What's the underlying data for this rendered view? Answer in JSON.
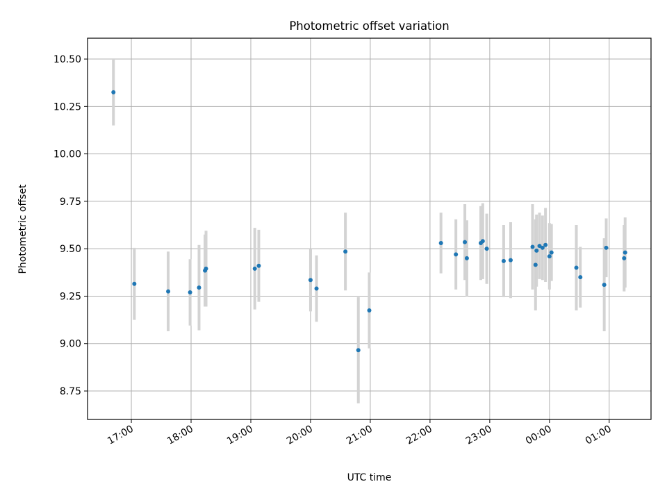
{
  "chart_data": {
    "type": "scatter",
    "title": "Photometric offset variation",
    "xlabel": "UTC time",
    "ylabel": "Photometric offset",
    "x_is_time": true,
    "xlim": [
      "16:16",
      "01:42"
    ],
    "ylim": [
      8.6,
      10.61
    ],
    "yticks": [
      8.75,
      9.0,
      9.25,
      9.5,
      9.75,
      10.0,
      10.25,
      10.5
    ],
    "xticks": [
      "17:00",
      "18:00",
      "19:00",
      "20:00",
      "21:00",
      "22:00",
      "23:00",
      "00:00",
      "01:00"
    ],
    "grid": true,
    "colors": {
      "points": "#1f77b4",
      "errorbars": "#d3d3d3",
      "grid": "#b0b0b0"
    },
    "points": [
      {
        "x": "16:42",
        "y": 10.325,
        "err": 0.175
      },
      {
        "x": "17:03",
        "y": 9.315,
        "err": 0.19
      },
      {
        "x": "17:37",
        "y": 9.275,
        "err": 0.21
      },
      {
        "x": "17:59",
        "y": 9.27,
        "err": 0.175
      },
      {
        "x": "18:08",
        "y": 9.295,
        "err": 0.225
      },
      {
        "x": "18:14",
        "y": 9.385,
        "err": 0.19
      },
      {
        "x": "18:15",
        "y": 9.395,
        "err": 0.2
      },
      {
        "x": "19:04",
        "y": 9.395,
        "err": 0.215
      },
      {
        "x": "19:08",
        "y": 9.41,
        "err": 0.19
      },
      {
        "x": "20:00",
        "y": 9.335,
        "err": 0.165
      },
      {
        "x": "20:06",
        "y": 9.29,
        "err": 0.175
      },
      {
        "x": "20:35",
        "y": 9.485,
        "err": 0.205
      },
      {
        "x": "20:48",
        "y": 8.965,
        "err": 0.28
      },
      {
        "x": "20:59",
        "y": 9.175,
        "err": 0.2
      },
      {
        "x": "22:11",
        "y": 9.53,
        "err": 0.16
      },
      {
        "x": "22:26",
        "y": 9.47,
        "err": 0.185
      },
      {
        "x": "22:35",
        "y": 9.535,
        "err": 0.2
      },
      {
        "x": "22:37",
        "y": 9.45,
        "err": 0.2
      },
      {
        "x": "22:51",
        "y": 9.53,
        "err": 0.195
      },
      {
        "x": "22:53",
        "y": 9.54,
        "err": 0.2
      },
      {
        "x": "22:57",
        "y": 9.5,
        "err": 0.185
      },
      {
        "x": "23:14",
        "y": 9.435,
        "err": 0.19
      },
      {
        "x": "23:21",
        "y": 9.44,
        "err": 0.2
      },
      {
        "x": "23:43",
        "y": 9.51,
        "err": 0.225
      },
      {
        "x": "23:46",
        "y": 9.415,
        "err": 0.24
      },
      {
        "x": "23:47",
        "y": 9.49,
        "err": 0.19
      },
      {
        "x": "23:50",
        "y": 9.515,
        "err": 0.175
      },
      {
        "x": "23:53",
        "y": 9.505,
        "err": 0.17
      },
      {
        "x": "23:56",
        "y": 9.52,
        "err": 0.195
      },
      {
        "x": "00:00",
        "y": 9.46,
        "err": 0.175
      },
      {
        "x": "00:02",
        "y": 9.48,
        "err": 0.15
      },
      {
        "x": "00:27",
        "y": 9.4,
        "err": 0.225
      },
      {
        "x": "00:31",
        "y": 9.35,
        "err": 0.16
      },
      {
        "x": "00:55",
        "y": 9.31,
        "err": 0.245
      },
      {
        "x": "00:57",
        "y": 9.505,
        "err": 0.155
      },
      {
        "x": "01:15",
        "y": 9.45,
        "err": 0.175
      },
      {
        "x": "01:16",
        "y": 9.48,
        "err": 0.185
      }
    ]
  }
}
